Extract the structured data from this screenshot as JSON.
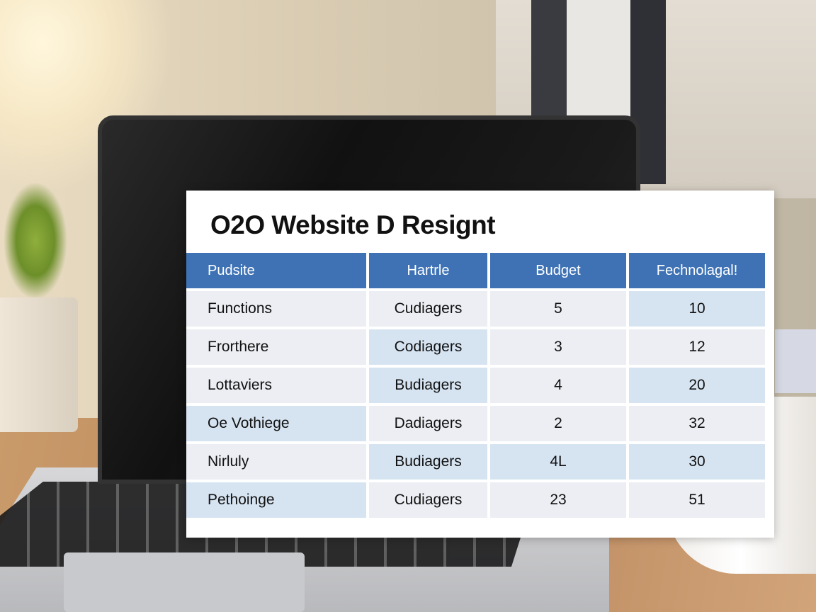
{
  "title": "O2O Website D Resignt",
  "table": {
    "headers": [
      "Pudsite",
      "Hartrle",
      "Budget",
      "Fechnolagal!"
    ],
    "rows": [
      [
        "Functions",
        "Cudiagers",
        "5",
        "10"
      ],
      [
        "Frorthere",
        "Codiagers",
        "3",
        "12"
      ],
      [
        "Lottaviers",
        "Budiagers",
        "4",
        "20"
      ],
      [
        "Oe Vothiege",
        "Dadiagers",
        "2",
        "32"
      ],
      [
        "Nirluly",
        "Budiagers",
        "4L",
        "30"
      ],
      [
        "Pethoinge",
        "Cudiagers",
        "23",
        "51"
      ]
    ],
    "highlight": [
      [
        0,
        0,
        0,
        1
      ],
      [
        0,
        1,
        0,
        0
      ],
      [
        0,
        1,
        0,
        1
      ],
      [
        1,
        0,
        0,
        0
      ],
      [
        0,
        1,
        1,
        1
      ],
      [
        1,
        0,
        0,
        0
      ]
    ]
  },
  "colors": {
    "header": "#3e72b5",
    "cell": "#eceef3",
    "cell_highlight": "#d6e4f2"
  }
}
